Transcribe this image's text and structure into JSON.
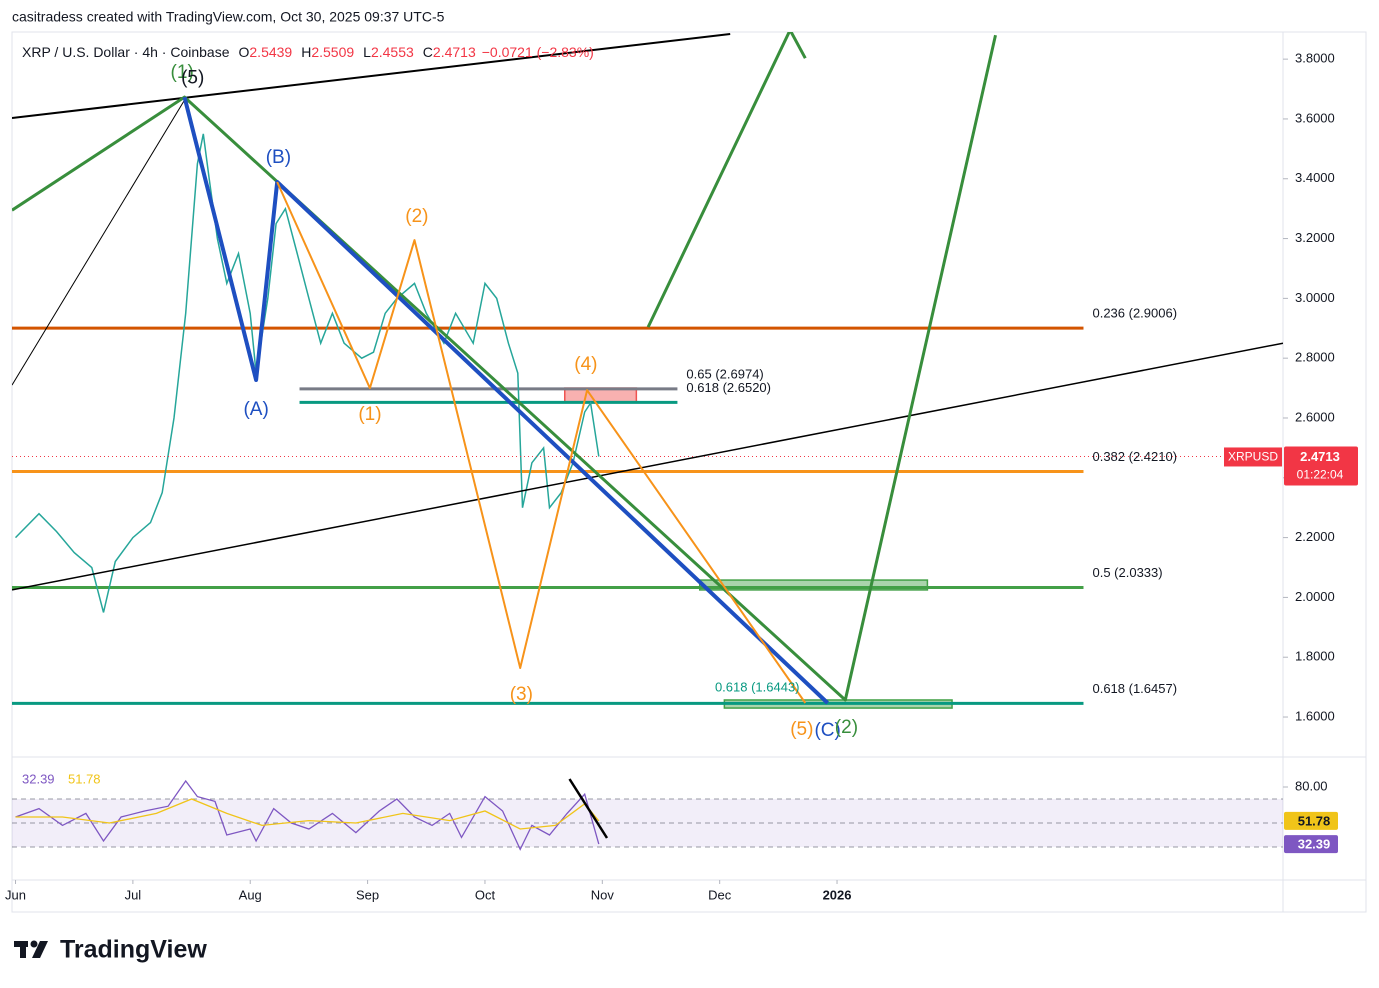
{
  "header": "casitradess created with TradingView.com, Oct 30, 2025 09:37 UTC-5",
  "footer": "TradingView",
  "chart_data": [
    {
      "type": "line",
      "title": "XRP / U.S. Dollar · 4h · Coinbase",
      "quote": [
        {
          "label": "O",
          "value": 2.5439
        },
        {
          "label": "H",
          "value": 2.5509
        },
        {
          "label": "L",
          "value": 2.4553
        },
        {
          "label": "C",
          "value": 2.4713
        }
      ],
      "change": "−0.0721 (−2.83%)",
      "symbol": "XRPUSD",
      "countdown": "01:22:04",
      "color": "#26a69a",
      "last_color": "#f23645",
      "x": [
        6.0,
        6.2,
        6.35,
        6.5,
        6.65,
        6.75,
        6.85,
        7.0,
        7.15,
        7.25,
        7.35,
        7.45,
        7.55,
        7.6,
        7.65,
        7.72,
        7.8,
        7.9,
        8.0,
        8.05,
        8.15,
        8.22,
        8.3,
        8.4,
        8.5,
        8.6,
        8.7,
        8.8,
        8.95,
        9.05,
        9.15,
        9.25,
        9.4,
        9.5,
        9.65,
        9.75,
        9.9,
        10.0,
        10.1,
        10.2,
        10.28,
        10.32,
        10.4,
        10.5,
        10.55,
        10.65,
        10.75,
        10.85,
        10.9,
        10.97
      ],
      "values": [
        2.2,
        2.28,
        2.22,
        2.15,
        2.1,
        1.95,
        2.12,
        2.2,
        2.25,
        2.35,
        2.6,
        2.95,
        3.45,
        3.55,
        3.4,
        3.2,
        3.05,
        3.15,
        2.95,
        2.75,
        3.0,
        3.25,
        3.3,
        3.15,
        3.0,
        2.85,
        2.95,
        2.85,
        2.8,
        2.82,
        2.95,
        3.0,
        3.05,
        2.95,
        2.85,
        2.95,
        2.85,
        3.05,
        3.0,
        2.85,
        2.75,
        2.3,
        2.45,
        2.5,
        2.3,
        2.35,
        2.45,
        2.62,
        2.65,
        2.4713
      ],
      "xlim": [
        5.97,
        16.8
      ],
      "xticks": [
        {
          "value": 6,
          "label": "Jun"
        },
        {
          "value": 7,
          "label": "Jul"
        },
        {
          "value": 8,
          "label": "Aug"
        },
        {
          "value": 9,
          "label": "Sep"
        },
        {
          "value": 10,
          "label": "Oct"
        },
        {
          "value": 11,
          "label": "Nov"
        },
        {
          "value": 12,
          "label": "Dec"
        },
        {
          "value": 13,
          "label": "2026"
        }
      ],
      "ylim": [
        1.473,
        3.864
      ],
      "yticks": [
        {
          "value": 1.6,
          "label": "1.6000"
        },
        {
          "value": 1.8,
          "label": "1.8000"
        },
        {
          "value": 2,
          "label": "2.0000"
        },
        {
          "value": 2.2,
          "label": "2.2000"
        },
        {
          "value": 2.4,
          "label": "2.4000"
        },
        {
          "value": 2.6,
          "label": "2.6000"
        },
        {
          "value": 2.8,
          "label": "2.8000"
        },
        {
          "value": 3,
          "label": "3.0000"
        },
        {
          "value": 3.2,
          "label": "3.2000"
        },
        {
          "value": 3.4,
          "label": "3.4000"
        },
        {
          "value": 3.6,
          "label": "3.6000"
        },
        {
          "value": 3.8,
          "label": "3.8000"
        }
      ],
      "levels": [
        {
          "label": "0.236 (2.9006)",
          "value": 2.9006,
          "x": [
            5.97,
            15.1
          ],
          "color": "#d35400"
        },
        {
          "label": "0.65 (2.6974)",
          "value": 2.6974,
          "x": [
            8.42,
            11.64
          ],
          "color": "#787b86"
        },
        {
          "label": "0.618 (2.6520)",
          "value": 2.652,
          "x": [
            8.42,
            11.64
          ],
          "color": "#089981"
        },
        {
          "label": "0.382 (2.4210)",
          "value": 2.421,
          "x": [
            5.97,
            15.1
          ],
          "color": "#f7931a"
        },
        {
          "label": "0.5 (2.0333)",
          "value": 2.0333,
          "x": [
            5.97,
            15.1
          ],
          "color": "#43a047"
        },
        {
          "label": "0.618 (1.6457)",
          "value": 1.6457,
          "x": [
            5.97,
            15.1
          ],
          "color": "#089981"
        }
      ],
      "zones": [
        {
          "x": [
            10.68,
            11.29
          ],
          "y": [
            2.653,
            2.7
          ],
          "color": "#ef5350"
        },
        {
          "x": [
            11.83,
            13.77
          ],
          "y": [
            2.025,
            2.058
          ],
          "color": "#43a047"
        },
        {
          "x": [
            12.04,
            13.98
          ],
          "y": [
            1.63,
            1.657
          ],
          "color": "#43a047"
        }
      ],
      "drawings": [
        {
          "x": [
            5.97,
            12.09
          ],
          "y": [
            3.603,
            3.884
          ],
          "color": "#000000",
          "width": 2
        },
        {
          "x": [
            5.97,
            7.44
          ],
          "y": [
            2.71,
            3.663
          ],
          "color": "#000000",
          "width": 1
        },
        {
          "x": [
            5.97,
            16.8
          ],
          "y": [
            2.025,
            2.85
          ],
          "color": "#000000",
          "width": 1.5
        },
        {
          "x": [
            5.97,
            7.44,
            13.07,
            14.35
          ],
          "y": [
            3.295,
            3.673,
            1.657,
            3.88
          ],
          "color": "#388e3c",
          "width": 3
        },
        {
          "x": [
            11.39,
            12.6,
            12.73
          ],
          "y": [
            2.904,
            3.897,
            3.803
          ],
          "color": "#388e3c",
          "width": 3
        },
        {
          "x": [
            7.44,
            8.05,
            8.23,
            12.92
          ],
          "y": [
            3.673,
            2.727,
            3.389,
            1.647
          ],
          "color": "#1e4fc1",
          "width": 4
        },
        {
          "x": [
            8.23,
            9.02,
            9.4,
            10.3,
            10.87,
            12.73
          ],
          "y": [
            3.389,
            2.7,
            3.195,
            1.764,
            2.693,
            1.647
          ],
          "color": "#f7931a",
          "width": 2
        }
      ],
      "annotations": [
        {
          "text": "(1)",
          "x": 7.42,
          "y": 3.753,
          "color": "#388e3c"
        },
        {
          "text": "(5)",
          "x": 7.51,
          "y": 3.736,
          "color": "#131722"
        },
        {
          "text": "(B)",
          "x": 8.24,
          "y": 3.469,
          "color": "#1e4fc1"
        },
        {
          "text": "(A)",
          "x": 8.05,
          "y": 2.626,
          "color": "#1e4fc1"
        },
        {
          "text": "(2)",
          "x": 9.42,
          "y": 3.272,
          "color": "#f7931a"
        },
        {
          "text": "(1)",
          "x": 9.02,
          "y": 2.61,
          "color": "#f7931a"
        },
        {
          "text": "(4)",
          "x": 10.86,
          "y": 2.777,
          "color": "#f7931a"
        },
        {
          "text": "(3)",
          "x": 10.31,
          "y": 1.674,
          "color": "#f7931a"
        },
        {
          "text": "(5)",
          "x": 12.7,
          "y": 1.557,
          "color": "#f7931a"
        },
        {
          "text": "(C)",
          "x": 12.92,
          "y": 1.553,
          "color": "#1e4fc1"
        },
        {
          "text": "(2)",
          "x": 13.08,
          "y": 1.563,
          "color": "#388e3c"
        },
        {
          "text": "0.618 (1.6443)",
          "x": 12.32,
          "y": 1.697,
          "color": "#089981",
          "small": true
        }
      ]
    },
    {
      "type": "line",
      "series": [
        {
          "color": "#7e57c2",
          "x": [
            6.0,
            6.2,
            6.4,
            6.6,
            6.75,
            6.9,
            7.1,
            7.3,
            7.45,
            7.55,
            7.7,
            7.8,
            8.0,
            8.05,
            8.2,
            8.35,
            8.5,
            8.7,
            8.9,
            9.1,
            9.25,
            9.4,
            9.55,
            9.7,
            9.8,
            10.0,
            10.15,
            10.3,
            10.4,
            10.55,
            10.7,
            10.85,
            10.97
          ],
          "values": [
            55,
            62,
            48,
            58,
            35,
            55,
            60,
            64,
            85,
            72,
            68,
            40,
            45,
            35,
            62,
            50,
            45,
            58,
            42,
            60,
            70,
            55,
            48,
            58,
            38,
            72,
            60,
            28,
            48,
            40,
            58,
            74,
            32.39
          ]
        },
        {
          "color": "#f0c419",
          "x": [
            6.0,
            6.4,
            6.8,
            7.2,
            7.5,
            7.8,
            8.1,
            8.5,
            8.9,
            9.3,
            9.7,
            10.0,
            10.3,
            10.6,
            10.85,
            10.97
          ],
          "values": [
            55,
            55,
            50,
            58,
            70,
            58,
            48,
            52,
            50,
            58,
            52,
            60,
            45,
            48,
            66,
            51.78
          ]
        }
      ],
      "xlim": [
        5.97,
        16.8
      ],
      "ylim": [
        2.5,
        102.5
      ],
      "yticks": [
        {
          "value": 80,
          "label": "80.00"
        }
      ],
      "band": [
        30,
        70
      ],
      "midline": 50,
      "drawings": [
        {
          "x": [
            10.72,
            11.04
          ],
          "y": [
            86.7,
            37.5
          ],
          "color": "#000000",
          "width": 2.5
        }
      ]
    }
  ]
}
